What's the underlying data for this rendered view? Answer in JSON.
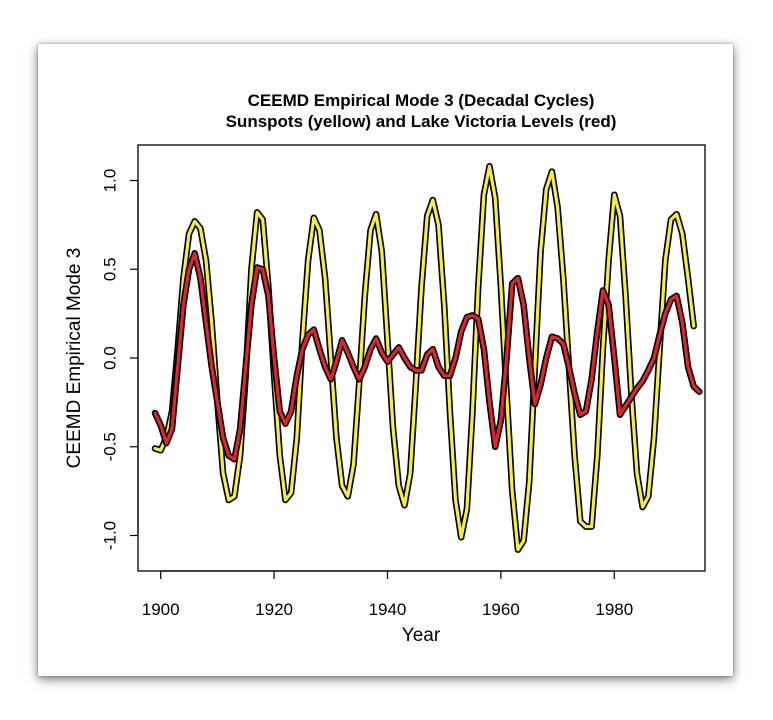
{
  "chart_data": {
    "type": "line",
    "title": "CEEMD Empirical Mode 3 (Decadal Cycles)",
    "subtitle": "Sunspots (yellow) and Lake Victoria Levels (red)",
    "xlabel": "Year",
    "ylabel": "CEEMD Empirical Mode 3",
    "xlim": [
      1896,
      1996
    ],
    "ylim": [
      -1.2,
      1.2
    ],
    "x_ticks": [
      1900,
      1920,
      1940,
      1960,
      1980
    ],
    "y_ticks": [
      -1.0,
      -0.5,
      0.0,
      0.5,
      1.0
    ],
    "y_tick_labels": [
      "-1.0",
      "-0.5",
      "0.0",
      "0.5",
      "1.0"
    ],
    "grid": false,
    "series": [
      {
        "name": "Sunspots",
        "color": "#f5ef3a",
        "outline": "#000000",
        "points": [
          [
            1899,
            -0.51
          ],
          [
            1900,
            -0.52
          ],
          [
            1901,
            -0.45
          ],
          [
            1902,
            -0.3
          ],
          [
            1903,
            0.05
          ],
          [
            1904,
            0.45
          ],
          [
            1905,
            0.7
          ],
          [
            1906,
            0.77
          ],
          [
            1907,
            0.73
          ],
          [
            1908,
            0.55
          ],
          [
            1909,
            0.2
          ],
          [
            1910,
            -0.25
          ],
          [
            1911,
            -0.65
          ],
          [
            1912,
            -0.8
          ],
          [
            1913,
            -0.78
          ],
          [
            1914,
            -0.55
          ],
          [
            1915,
            -0.1
          ],
          [
            1916,
            0.5
          ],
          [
            1917,
            0.82
          ],
          [
            1918,
            0.78
          ],
          [
            1919,
            0.4
          ],
          [
            1920,
            -0.1
          ],
          [
            1921,
            -0.55
          ],
          [
            1922,
            -0.8
          ],
          [
            1923,
            -0.76
          ],
          [
            1924,
            -0.45
          ],
          [
            1925,
            0.1
          ],
          [
            1926,
            0.55
          ],
          [
            1927,
            0.79
          ],
          [
            1928,
            0.72
          ],
          [
            1929,
            0.45
          ],
          [
            1930,
            0.0
          ],
          [
            1931,
            -0.45
          ],
          [
            1932,
            -0.72
          ],
          [
            1933,
            -0.78
          ],
          [
            1934,
            -0.6
          ],
          [
            1935,
            -0.15
          ],
          [
            1936,
            0.35
          ],
          [
            1937,
            0.72
          ],
          [
            1938,
            0.81
          ],
          [
            1939,
            0.6
          ],
          [
            1940,
            0.1
          ],
          [
            1941,
            -0.4
          ],
          [
            1942,
            -0.72
          ],
          [
            1943,
            -0.83
          ],
          [
            1944,
            -0.65
          ],
          [
            1945,
            -0.15
          ],
          [
            1946,
            0.4
          ],
          [
            1947,
            0.8
          ],
          [
            1948,
            0.89
          ],
          [
            1949,
            0.75
          ],
          [
            1950,
            0.3
          ],
          [
            1951,
            -0.3
          ],
          [
            1952,
            -0.8
          ],
          [
            1953,
            -1.01
          ],
          [
            1954,
            -0.85
          ],
          [
            1955,
            -0.3
          ],
          [
            1956,
            0.4
          ],
          [
            1957,
            0.92
          ],
          [
            1958,
            1.08
          ],
          [
            1959,
            0.9
          ],
          [
            1960,
            0.4
          ],
          [
            1961,
            -0.2
          ],
          [
            1962,
            -0.75
          ],
          [
            1963,
            -1.08
          ],
          [
            1964,
            -1.03
          ],
          [
            1965,
            -0.7
          ],
          [
            1966,
            -0.05
          ],
          [
            1967,
            0.6
          ],
          [
            1968,
            0.95
          ],
          [
            1969,
            1.05
          ],
          [
            1970,
            0.85
          ],
          [
            1971,
            0.45
          ],
          [
            1972,
            -0.05
          ],
          [
            1973,
            -0.55
          ],
          [
            1974,
            -0.92
          ],
          [
            1975,
            -0.95
          ],
          [
            1976,
            -0.95
          ],
          [
            1977,
            -0.55
          ],
          [
            1978,
            0.05
          ],
          [
            1979,
            0.55
          ],
          [
            1980,
            0.92
          ],
          [
            1981,
            0.8
          ],
          [
            1982,
            0.35
          ],
          [
            1983,
            -0.2
          ],
          [
            1984,
            -0.65
          ],
          [
            1985,
            -0.84
          ],
          [
            1986,
            -0.78
          ],
          [
            1987,
            -0.45
          ],
          [
            1988,
            0.05
          ],
          [
            1989,
            0.55
          ],
          [
            1990,
            0.78
          ],
          [
            1991,
            0.81
          ],
          [
            1992,
            0.7
          ],
          [
            1993,
            0.45
          ],
          [
            1994,
            0.18
          ]
        ]
      },
      {
        "name": "Lake Victoria Levels",
        "color": "#e3242b",
        "outline": "#000000",
        "points": [
          [
            1899,
            -0.31
          ],
          [
            1900,
            -0.38
          ],
          [
            1901,
            -0.48
          ],
          [
            1902,
            -0.4
          ],
          [
            1903,
            -0.05
          ],
          [
            1904,
            0.3
          ],
          [
            1905,
            0.5
          ],
          [
            1906,
            0.59
          ],
          [
            1907,
            0.45
          ],
          [
            1908,
            0.2
          ],
          [
            1909,
            -0.05
          ],
          [
            1910,
            -0.25
          ],
          [
            1911,
            -0.45
          ],
          [
            1912,
            -0.55
          ],
          [
            1913,
            -0.57
          ],
          [
            1914,
            -0.4
          ],
          [
            1915,
            -0.05
          ],
          [
            1916,
            0.3
          ],
          [
            1917,
            0.51
          ],
          [
            1918,
            0.5
          ],
          [
            1919,
            0.35
          ],
          [
            1920,
            0.0
          ],
          [
            1921,
            -0.3
          ],
          [
            1922,
            -0.37
          ],
          [
            1923,
            -0.3
          ],
          [
            1924,
            -0.1
          ],
          [
            1925,
            0.05
          ],
          [
            1926,
            0.13
          ],
          [
            1927,
            0.16
          ],
          [
            1928,
            0.05
          ],
          [
            1929,
            -0.05
          ],
          [
            1930,
            -0.12
          ],
          [
            1931,
            -0.02
          ],
          [
            1932,
            0.1
          ],
          [
            1933,
            0.03
          ],
          [
            1934,
            -0.05
          ],
          [
            1935,
            -0.12
          ],
          [
            1936,
            -0.05
          ],
          [
            1937,
            0.05
          ],
          [
            1938,
            0.11
          ],
          [
            1939,
            0.03
          ],
          [
            1940,
            -0.02
          ],
          [
            1941,
            0.02
          ],
          [
            1942,
            0.06
          ],
          [
            1943,
            0.0
          ],
          [
            1944,
            -0.05
          ],
          [
            1945,
            -0.07
          ],
          [
            1946,
            -0.07
          ],
          [
            1947,
            0.02
          ],
          [
            1948,
            0.05
          ],
          [
            1949,
            -0.05
          ],
          [
            1950,
            -0.1
          ],
          [
            1951,
            -0.1
          ],
          [
            1952,
            0.0
          ],
          [
            1953,
            0.15
          ],
          [
            1954,
            0.23
          ],
          [
            1955,
            0.24
          ],
          [
            1956,
            0.22
          ],
          [
            1957,
            0.05
          ],
          [
            1958,
            -0.25
          ],
          [
            1959,
            -0.5
          ],
          [
            1960,
            -0.35
          ],
          [
            1961,
            0.0
          ],
          [
            1962,
            0.42
          ],
          [
            1963,
            0.45
          ],
          [
            1964,
            0.3
          ],
          [
            1965,
            0.0
          ],
          [
            1966,
            -0.26
          ],
          [
            1967,
            -0.15
          ],
          [
            1968,
            0.0
          ],
          [
            1969,
            0.12
          ],
          [
            1970,
            0.11
          ],
          [
            1971,
            0.08
          ],
          [
            1972,
            -0.05
          ],
          [
            1973,
            -0.2
          ],
          [
            1974,
            -0.32
          ],
          [
            1975,
            -0.3
          ],
          [
            1976,
            -0.12
          ],
          [
            1977,
            0.15
          ],
          [
            1978,
            0.38
          ],
          [
            1979,
            0.3
          ],
          [
            1980,
            0.0
          ],
          [
            1981,
            -0.32
          ],
          [
            1982,
            -0.27
          ],
          [
            1983,
            -0.22
          ],
          [
            1984,
            -0.17
          ],
          [
            1985,
            -0.13
          ],
          [
            1986,
            -0.07
          ],
          [
            1987,
            0.0
          ],
          [
            1988,
            0.13
          ],
          [
            1989,
            0.25
          ],
          [
            1990,
            0.33
          ],
          [
            1991,
            0.35
          ],
          [
            1992,
            0.2
          ],
          [
            1993,
            -0.05
          ],
          [
            1994,
            -0.16
          ],
          [
            1995,
            -0.19
          ]
        ]
      }
    ]
  }
}
